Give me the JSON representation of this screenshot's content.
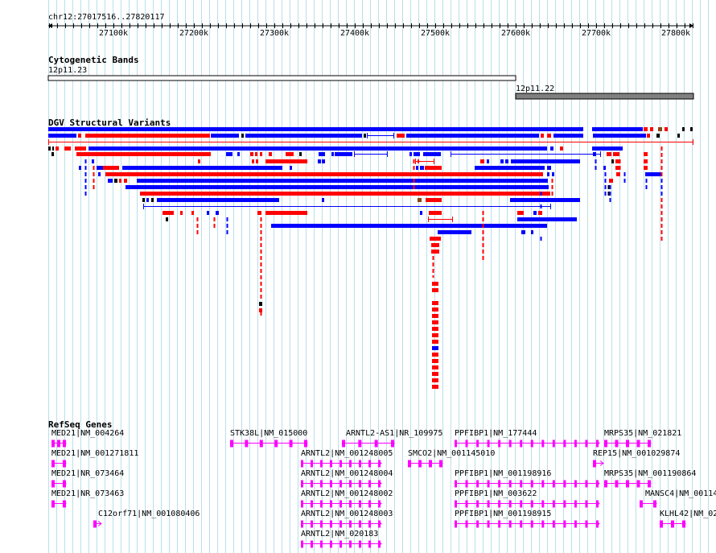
{
  "ruler": {
    "location": "chr12:27017516..27820117",
    "ticks": [
      "27100k",
      "27200k",
      "27300k",
      "27400k",
      "27500k",
      "27600k",
      "27700k",
      "27800k"
    ]
  },
  "colors": {
    "gridline": "#b9dfea",
    "variant_loss": "#ff0000",
    "variant_gain": "#0000ff",
    "variant_complex": "#8b4513",
    "variant_other": "#000000",
    "gene": "#ff00ff",
    "band_dark": "#808080"
  },
  "tracks": {
    "cyto": {
      "title": "Cytogenetic Bands",
      "bands": [
        {
          "name": "12p11.23",
          "stain": "white"
        },
        {
          "name": "12p11.22",
          "stain": "gray"
        }
      ]
    },
    "dgv": {
      "title": "DGV Structural Variants"
    },
    "refseq": {
      "title": "RefSeq Genes",
      "genes": [
        {
          "label": "MED21|NM_004264"
        },
        {
          "label": "MED21|NM_001271811"
        },
        {
          "label": "MED21|NR_073464"
        },
        {
          "label": "MED21|NR_073463"
        },
        {
          "label": "C12orf71|NM_001080406"
        },
        {
          "label": "STK38L|NM_015000"
        },
        {
          "label": "ARNTL2-AS1|NR_109975"
        },
        {
          "label": "ARNTL2|NM_001248005"
        },
        {
          "label": "ARNTL2|NM_001248004"
        },
        {
          "label": "ARNTL2|NM_001248002"
        },
        {
          "label": "ARNTL2|NM_001248003"
        },
        {
          "label": "ARNTL2|NM_020183"
        },
        {
          "label": "SMCO2|NM_001145010"
        },
        {
          "label": "PPFIBP1|NM_177444"
        },
        {
          "label": "PPFIBP1|NM_001198916"
        },
        {
          "label": "PPFIBP1|NM_003622"
        },
        {
          "label": "PPFIBP1|NM_001198915"
        },
        {
          "label": "MRPS35|NM_021821"
        },
        {
          "label": "REP15|NM_001029874"
        },
        {
          "label": "MRPS35|NM_001190864"
        },
        {
          "label": "MANSC4|NM_00114"
        },
        {
          "label": "KLHL42|NM_02"
        }
      ]
    }
  }
}
